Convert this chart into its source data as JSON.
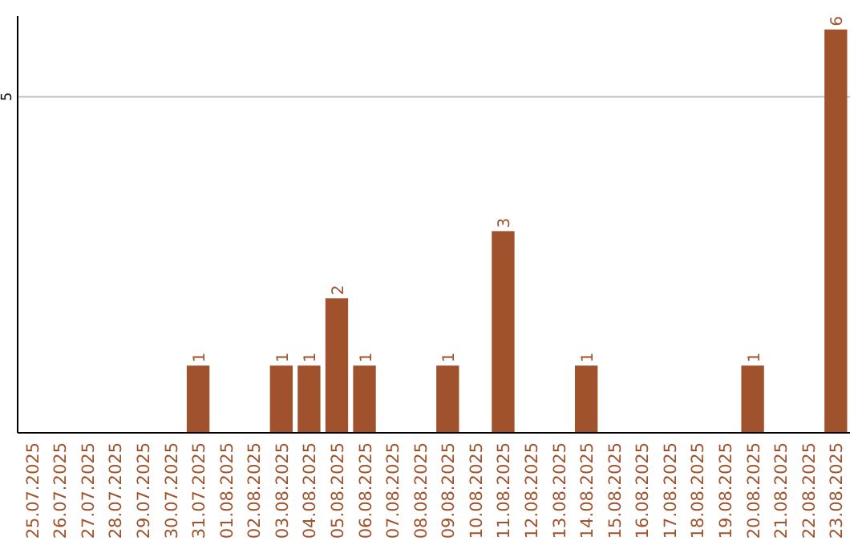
{
  "chart_data": {
    "type": "bar",
    "categories": [
      "25.07.2025",
      "26.07.2025",
      "27.07.2025",
      "28.07.2025",
      "29.07.2025",
      "30.07.2025",
      "31.07.2025",
      "01.08.2025",
      "02.08.2025",
      "03.08.2025",
      "04.08.2025",
      "05.08.2025",
      "06.08.2025",
      "07.08.2025",
      "08.08.2025",
      "09.08.2025",
      "10.08.2025",
      "11.08.2025",
      "12.08.2025",
      "13.08.2025",
      "14.08.2025",
      "15.08.2025",
      "16.08.2025",
      "17.08.2025",
      "18.08.2025",
      "19.08.2025",
      "20.08.2025",
      "21.08.2025",
      "22.08.2025",
      "23.08.2025"
    ],
    "values": [
      0,
      0,
      0,
      0,
      0,
      0,
      1,
      0,
      0,
      1,
      1,
      2,
      1,
      0,
      0,
      1,
      0,
      3,
      0,
      0,
      1,
      0,
      0,
      0,
      0,
      0,
      1,
      0,
      0,
      6
    ],
    "value_labels": [
      null,
      null,
      null,
      null,
      null,
      null,
      "1",
      null,
      null,
      "1",
      "1",
      "2",
      "1",
      null,
      null,
      "1",
      null,
      "3",
      null,
      null,
      "1",
      null,
      null,
      null,
      null,
      null,
      "1",
      null,
      null,
      "6"
    ],
    "color": "#a0522d",
    "ylim": [
      0,
      6.2
    ],
    "yticks": [
      5
    ],
    "grid": "y"
  }
}
